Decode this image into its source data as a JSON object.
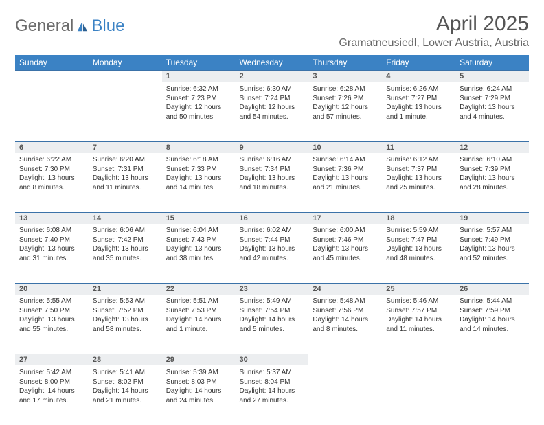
{
  "logo": {
    "text1": "General",
    "text2": "Blue"
  },
  "title": "April 2025",
  "location": "Gramatneusiedl, Lower Austria, Austria",
  "colors": {
    "header_bg": "#3b82c4",
    "header_text": "#ffffff",
    "daynum_bg": "#eceef0",
    "daynum_border": "#3b72a8",
    "body_bg": "#ffffff",
    "logo_gray": "#6b6b6b",
    "logo_blue": "#3b82c4"
  },
  "day_headers": [
    "Sunday",
    "Monday",
    "Tuesday",
    "Wednesday",
    "Thursday",
    "Friday",
    "Saturday"
  ],
  "weeks": [
    [
      null,
      null,
      {
        "n": "1",
        "sr": "Sunrise: 6:32 AM",
        "ss": "Sunset: 7:23 PM",
        "dl": "Daylight: 12 hours and 50 minutes."
      },
      {
        "n": "2",
        "sr": "Sunrise: 6:30 AM",
        "ss": "Sunset: 7:24 PM",
        "dl": "Daylight: 12 hours and 54 minutes."
      },
      {
        "n": "3",
        "sr": "Sunrise: 6:28 AM",
        "ss": "Sunset: 7:26 PM",
        "dl": "Daylight: 12 hours and 57 minutes."
      },
      {
        "n": "4",
        "sr": "Sunrise: 6:26 AM",
        "ss": "Sunset: 7:27 PM",
        "dl": "Daylight: 13 hours and 1 minute."
      },
      {
        "n": "5",
        "sr": "Sunrise: 6:24 AM",
        "ss": "Sunset: 7:29 PM",
        "dl": "Daylight: 13 hours and 4 minutes."
      }
    ],
    [
      {
        "n": "6",
        "sr": "Sunrise: 6:22 AM",
        "ss": "Sunset: 7:30 PM",
        "dl": "Daylight: 13 hours and 8 minutes."
      },
      {
        "n": "7",
        "sr": "Sunrise: 6:20 AM",
        "ss": "Sunset: 7:31 PM",
        "dl": "Daylight: 13 hours and 11 minutes."
      },
      {
        "n": "8",
        "sr": "Sunrise: 6:18 AM",
        "ss": "Sunset: 7:33 PM",
        "dl": "Daylight: 13 hours and 14 minutes."
      },
      {
        "n": "9",
        "sr": "Sunrise: 6:16 AM",
        "ss": "Sunset: 7:34 PM",
        "dl": "Daylight: 13 hours and 18 minutes."
      },
      {
        "n": "10",
        "sr": "Sunrise: 6:14 AM",
        "ss": "Sunset: 7:36 PM",
        "dl": "Daylight: 13 hours and 21 minutes."
      },
      {
        "n": "11",
        "sr": "Sunrise: 6:12 AM",
        "ss": "Sunset: 7:37 PM",
        "dl": "Daylight: 13 hours and 25 minutes."
      },
      {
        "n": "12",
        "sr": "Sunrise: 6:10 AM",
        "ss": "Sunset: 7:39 PM",
        "dl": "Daylight: 13 hours and 28 minutes."
      }
    ],
    [
      {
        "n": "13",
        "sr": "Sunrise: 6:08 AM",
        "ss": "Sunset: 7:40 PM",
        "dl": "Daylight: 13 hours and 31 minutes."
      },
      {
        "n": "14",
        "sr": "Sunrise: 6:06 AM",
        "ss": "Sunset: 7:42 PM",
        "dl": "Daylight: 13 hours and 35 minutes."
      },
      {
        "n": "15",
        "sr": "Sunrise: 6:04 AM",
        "ss": "Sunset: 7:43 PM",
        "dl": "Daylight: 13 hours and 38 minutes."
      },
      {
        "n": "16",
        "sr": "Sunrise: 6:02 AM",
        "ss": "Sunset: 7:44 PM",
        "dl": "Daylight: 13 hours and 42 minutes."
      },
      {
        "n": "17",
        "sr": "Sunrise: 6:00 AM",
        "ss": "Sunset: 7:46 PM",
        "dl": "Daylight: 13 hours and 45 minutes."
      },
      {
        "n": "18",
        "sr": "Sunrise: 5:59 AM",
        "ss": "Sunset: 7:47 PM",
        "dl": "Daylight: 13 hours and 48 minutes."
      },
      {
        "n": "19",
        "sr": "Sunrise: 5:57 AM",
        "ss": "Sunset: 7:49 PM",
        "dl": "Daylight: 13 hours and 52 minutes."
      }
    ],
    [
      {
        "n": "20",
        "sr": "Sunrise: 5:55 AM",
        "ss": "Sunset: 7:50 PM",
        "dl": "Daylight: 13 hours and 55 minutes."
      },
      {
        "n": "21",
        "sr": "Sunrise: 5:53 AM",
        "ss": "Sunset: 7:52 PM",
        "dl": "Daylight: 13 hours and 58 minutes."
      },
      {
        "n": "22",
        "sr": "Sunrise: 5:51 AM",
        "ss": "Sunset: 7:53 PM",
        "dl": "Daylight: 14 hours and 1 minute."
      },
      {
        "n": "23",
        "sr": "Sunrise: 5:49 AM",
        "ss": "Sunset: 7:54 PM",
        "dl": "Daylight: 14 hours and 5 minutes."
      },
      {
        "n": "24",
        "sr": "Sunrise: 5:48 AM",
        "ss": "Sunset: 7:56 PM",
        "dl": "Daylight: 14 hours and 8 minutes."
      },
      {
        "n": "25",
        "sr": "Sunrise: 5:46 AM",
        "ss": "Sunset: 7:57 PM",
        "dl": "Daylight: 14 hours and 11 minutes."
      },
      {
        "n": "26",
        "sr": "Sunrise: 5:44 AM",
        "ss": "Sunset: 7:59 PM",
        "dl": "Daylight: 14 hours and 14 minutes."
      }
    ],
    [
      {
        "n": "27",
        "sr": "Sunrise: 5:42 AM",
        "ss": "Sunset: 8:00 PM",
        "dl": "Daylight: 14 hours and 17 minutes."
      },
      {
        "n": "28",
        "sr": "Sunrise: 5:41 AM",
        "ss": "Sunset: 8:02 PM",
        "dl": "Daylight: 14 hours and 21 minutes."
      },
      {
        "n": "29",
        "sr": "Sunrise: 5:39 AM",
        "ss": "Sunset: 8:03 PM",
        "dl": "Daylight: 14 hours and 24 minutes."
      },
      {
        "n": "30",
        "sr": "Sunrise: 5:37 AM",
        "ss": "Sunset: 8:04 PM",
        "dl": "Daylight: 14 hours and 27 minutes."
      },
      null,
      null,
      null
    ]
  ]
}
